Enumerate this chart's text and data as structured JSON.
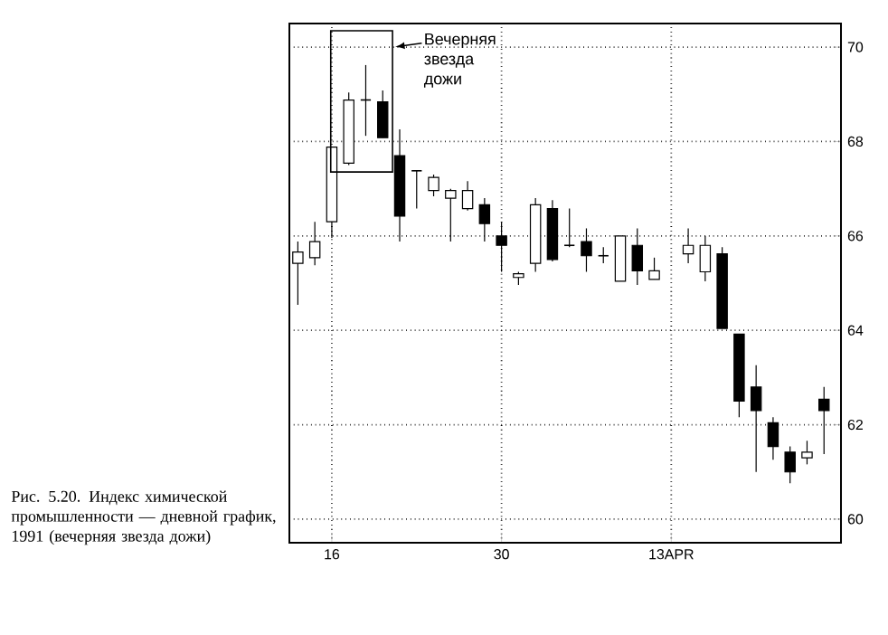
{
  "chart_data": {
    "type": "candlestick",
    "title": "Рис. 5.20. Индекс химической промышленности — дневной график, 1991 (вечерняя звезда дожи)",
    "categories": [
      null,
      null,
      "16",
      null,
      null,
      null,
      null,
      null,
      null,
      null,
      null,
      null,
      "30",
      null,
      null,
      null,
      null,
      null,
      null,
      null,
      null,
      null,
      "13APR",
      null,
      null,
      null,
      null,
      null,
      null,
      null,
      null,
      null
    ],
    "ohlc": [
      [
        65.42,
        65.88,
        64.54,
        65.66
      ],
      [
        65.54,
        66.3,
        65.38,
        65.88
      ],
      [
        66.3,
        67.88,
        65.96,
        67.88
      ],
      [
        67.54,
        69.04,
        67.5,
        68.88
      ],
      [
        68.88,
        69.62,
        68.12,
        68.88
      ],
      [
        68.84,
        69.08,
        68.08,
        68.08
      ],
      [
        67.7,
        68.26,
        65.88,
        66.42
      ],
      [
        67.38,
        67.38,
        66.58,
        67.38
      ],
      [
        66.96,
        67.3,
        66.84,
        67.24
      ],
      [
        66.8,
        67.0,
        65.88,
        66.96
      ],
      [
        66.58,
        67.16,
        66.54,
        66.96
      ],
      [
        66.66,
        66.8,
        65.88,
        66.26
      ],
      [
        66.0,
        66.3,
        65.24,
        65.8
      ],
      [
        65.12,
        65.24,
        64.96,
        65.2
      ],
      [
        65.42,
        66.8,
        65.24,
        66.66
      ],
      [
        66.58,
        66.76,
        65.46,
        65.5
      ],
      [
        65.8,
        66.58,
        65.76,
        65.8
      ],
      [
        65.88,
        66.16,
        65.24,
        65.58
      ],
      [
        65.58,
        65.76,
        65.42,
        65.58
      ],
      [
        65.04,
        66.0,
        65.04,
        66.0
      ],
      [
        65.8,
        66.16,
        64.96,
        65.26
      ],
      [
        65.08,
        65.54,
        65.08,
        65.26
      ],
      null,
      [
        65.62,
        66.16,
        65.42,
        65.8
      ],
      [
        65.24,
        66.0,
        65.04,
        65.8
      ],
      [
        65.62,
        65.76,
        64.04,
        64.04
      ],
      [
        63.92,
        63.92,
        62.16,
        62.5
      ],
      [
        62.8,
        63.26,
        61.0,
        62.3
      ],
      [
        62.04,
        62.16,
        61.26,
        61.54
      ],
      [
        61.42,
        61.54,
        60.76,
        61.0
      ],
      [
        61.3,
        61.66,
        61.16,
        61.42
      ],
      [
        62.54,
        62.8,
        61.38,
        62.3
      ]
    ],
    "ylim": [
      59.5,
      70.5
    ],
    "yticks": [
      60,
      62,
      64,
      66,
      68,
      70
    ],
    "grid": true,
    "annotations": [
      "Вечерняя звезда дожи"
    ]
  }
}
